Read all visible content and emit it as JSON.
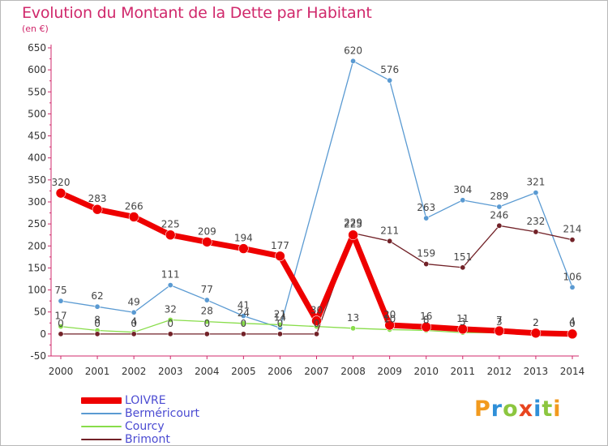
{
  "title": "Evolution du Montant de la Dette par Habitant",
  "unit_label": "(en €)",
  "logo": {
    "text": "Proxiti",
    "letters": [
      "P",
      "r",
      "o",
      "x",
      "i",
      "t",
      "i"
    ],
    "colors": [
      "#f29a1e",
      "#2f8fd8",
      "#8cc63f",
      "#e8451f",
      "#2f8fd8",
      "#8cc63f",
      "#f29a1e"
    ]
  },
  "chart_data": {
    "type": "line",
    "title": "Evolution du Montant de la Dette par Habitant",
    "ylabel": "(en €)",
    "xlabel": "",
    "x": [
      "2000",
      "2001",
      "2002",
      "2003",
      "2004",
      "2005",
      "2006",
      "2007",
      "2008",
      "2009",
      "2010",
      "2011",
      "2012",
      "2013",
      "2014"
    ],
    "ylim": [
      -50,
      650
    ],
    "yticks": [
      -50,
      0,
      50,
      100,
      150,
      200,
      250,
      300,
      350,
      400,
      450,
      500,
      550,
      600,
      650
    ],
    "grid": false,
    "legend_position": "bottom-left",
    "series": [
      {
        "name": "LOIVRE",
        "color": "#ee0000",
        "values": [
          320,
          283,
          266,
          225,
          209,
          194,
          177,
          30,
          225,
          20,
          16,
          11,
          7,
          2,
          0
        ],
        "labels": [
          "320",
          "283",
          "266",
          "225",
          "209",
          "194",
          "177",
          "30",
          "225",
          "20",
          "16",
          "11",
          "7",
          "2",
          "0"
        ]
      },
      {
        "name": "Berméricourt",
        "color": "#5a9ad2",
        "values": [
          75,
          62,
          49,
          111,
          77,
          41,
          14,
          null,
          620,
          576,
          263,
          304,
          289,
          321,
          106
        ],
        "labels": [
          "75",
          "62",
          "49",
          "111",
          "77",
          "41",
          "14",
          "",
          "620",
          "576",
          "263",
          "304",
          "289",
          "321",
          "106"
        ]
      },
      {
        "name": "Courcy",
        "color": "#88dd4a",
        "values": [
          17,
          8,
          4,
          32,
          28,
          24,
          21,
          17,
          13,
          10,
          8,
          3,
          3,
          2,
          4
        ],
        "labels": [
          "17",
          "8",
          "4",
          "32",
          "28",
          "24",
          "21",
          "",
          "13",
          "10",
          "8",
          "3",
          "3",
          "2",
          "4"
        ]
      },
      {
        "name": "Brimont",
        "color": "#722228",
        "values": [
          0,
          0,
          0,
          0,
          0,
          0,
          0,
          0,
          229,
          211,
          159,
          151,
          246,
          232,
          214
        ],
        "labels": [
          "0",
          "0",
          "0",
          "0",
          "0",
          "0",
          "0",
          "0",
          "229",
          "211",
          "159",
          "151",
          "246",
          "232",
          "214"
        ]
      }
    ]
  }
}
